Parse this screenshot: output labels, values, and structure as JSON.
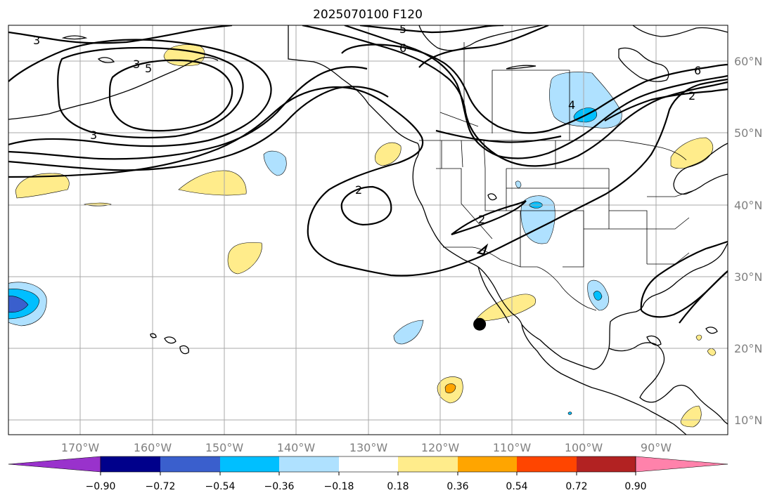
{
  "title": "2025070100 F120",
  "colors": {
    "grid": "#a8a8a8",
    "tick_label": "#808080",
    "contour": "#000000",
    "marker": "#000000"
  },
  "icons": {
    "marker": "filled-black-circle"
  },
  "map": {
    "projection": "Mercator",
    "lon_range": [
      -180,
      -80
    ],
    "lat_range": [
      7,
      65
    ],
    "grid": true,
    "lon_tick_values": [
      -170,
      -160,
      -150,
      -140,
      -130,
      -120,
      -110,
      -100,
      -90
    ],
    "lat_tick_values": [
      10,
      20,
      30,
      40,
      50,
      60
    ],
    "lon_tick_labels": [
      "170°W",
      "160°W",
      "150°W",
      "140°W",
      "130°W",
      "120°W",
      "110°W",
      "100°W",
      "90°W"
    ],
    "lat_tick_labels": [
      "10°N",
      "20°N",
      "30°N",
      "40°N",
      "50°N",
      "60°N"
    ],
    "contour_labels": [
      "3",
      "3",
      "5",
      "6",
      "3",
      "5",
      "6",
      "4",
      "2",
      "2",
      "2"
    ],
    "marker": {
      "lon": -114.5,
      "lat": 26.5
    }
  },
  "colorbar": {
    "orientation": "horizontal",
    "extend": "both",
    "colors": [
      "#9932cc",
      "#00008b",
      "#3a5fcd",
      "#00bfff",
      "#afe1ff",
      "#ffffff",
      "#ffec8b",
      "#ffa500",
      "#ff4500",
      "#b22222",
      "#ff82ab"
    ],
    "tick_labels": [
      "−0.90",
      "−0.72",
      "−0.54",
      "−0.36",
      "−0.18",
      "0.18",
      "0.36",
      "0.54",
      "0.72",
      "0.90"
    ]
  }
}
